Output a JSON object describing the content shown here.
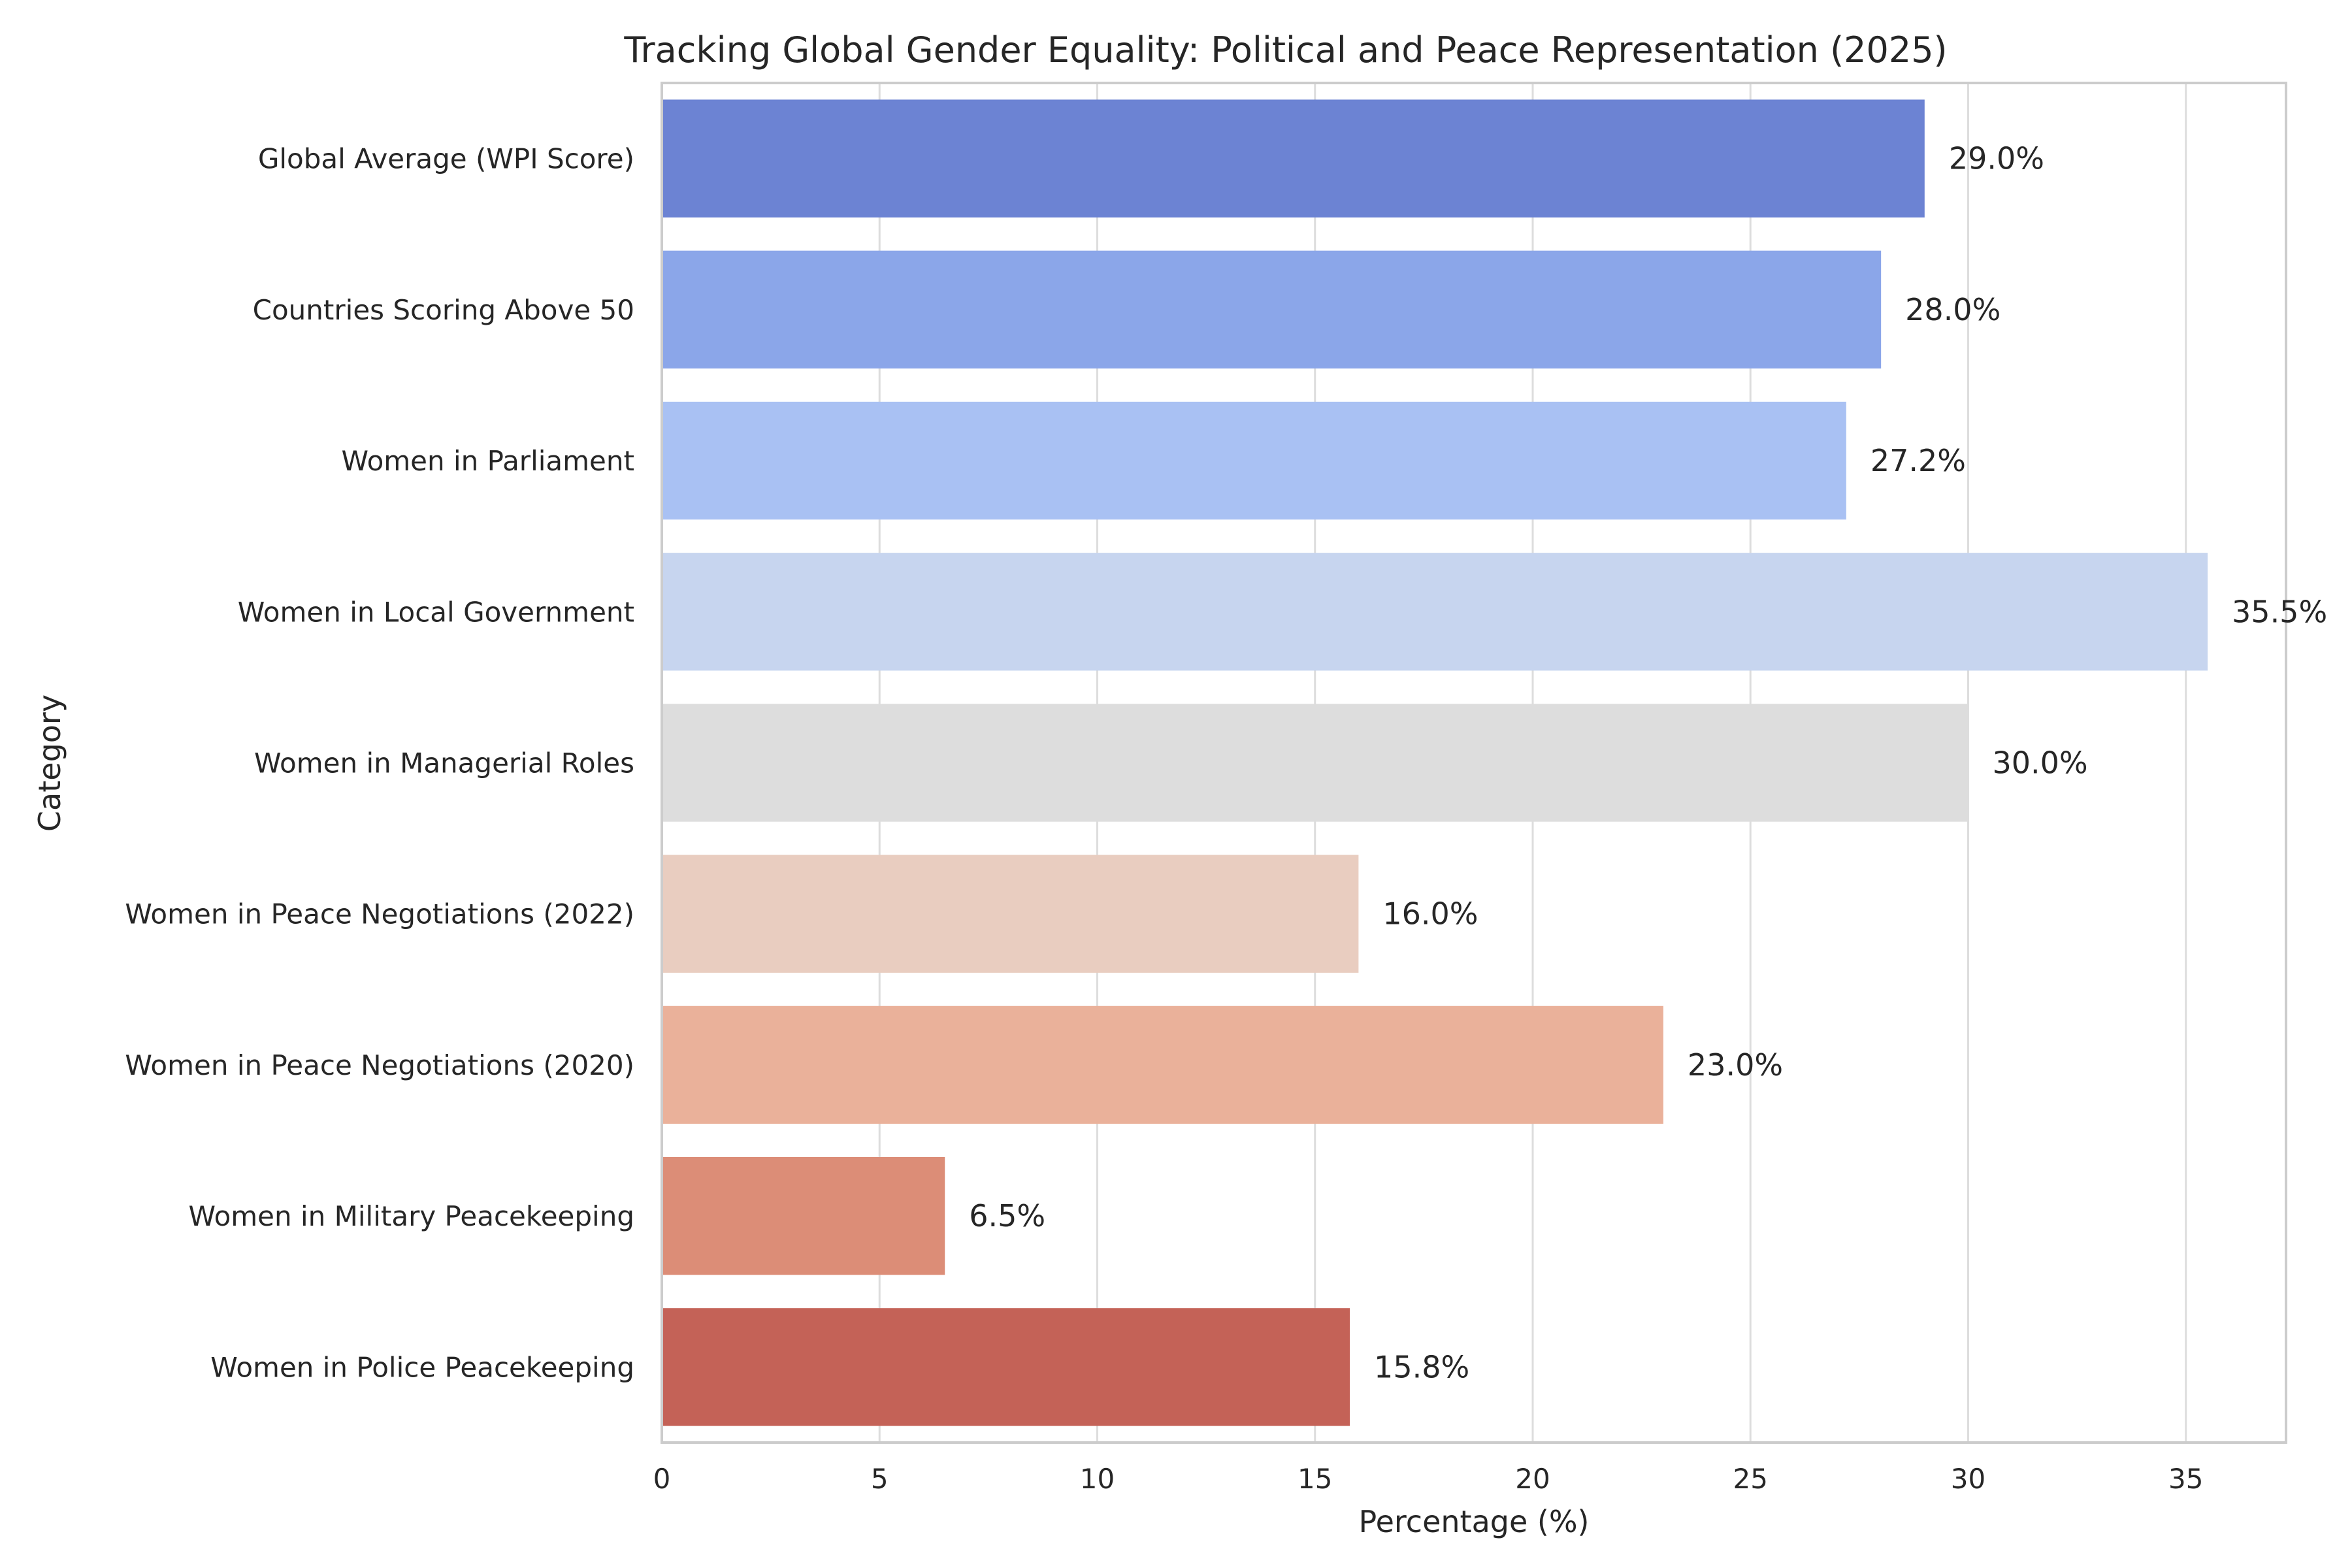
{
  "chart_data": {
    "type": "bar",
    "orientation": "horizontal",
    "title": "Tracking Global Gender Equality: Political and Peace Representation (2025)",
    "xlabel": "Percentage (%)",
    "ylabel": "Category",
    "xlim": [
      0,
      37.3
    ],
    "xticks": [
      0,
      5,
      10,
      15,
      20,
      25,
      30,
      35
    ],
    "grid": true,
    "legend": "none",
    "categories": [
      "Global Average (WPI Score)",
      "Countries Scoring Above 50",
      "Women in Parliament",
      "Women in Local Government",
      "Women in Managerial Roles",
      "Women in Peace Negotiations (2022)",
      "Women in Peace Negotiations (2020)",
      "Women in Military Peacekeeping",
      "Women in Police Peacekeeping"
    ],
    "values": [
      29.0,
      28.0,
      27.2,
      35.5,
      30.0,
      16.0,
      23.0,
      6.5,
      15.8
    ],
    "value_labels": [
      "29.0%",
      "28.0%",
      "27.2%",
      "35.5%",
      "30.0%",
      "16.0%",
      "23.0%",
      "6.5%",
      "15.8%"
    ],
    "colors": [
      "#6c83d3",
      "#8ba6e9",
      "#a9c1f3",
      "#c7d5ef",
      "#dddddd",
      "#e9cdc0",
      "#eab19a",
      "#dc8d77",
      "#c46257"
    ]
  }
}
